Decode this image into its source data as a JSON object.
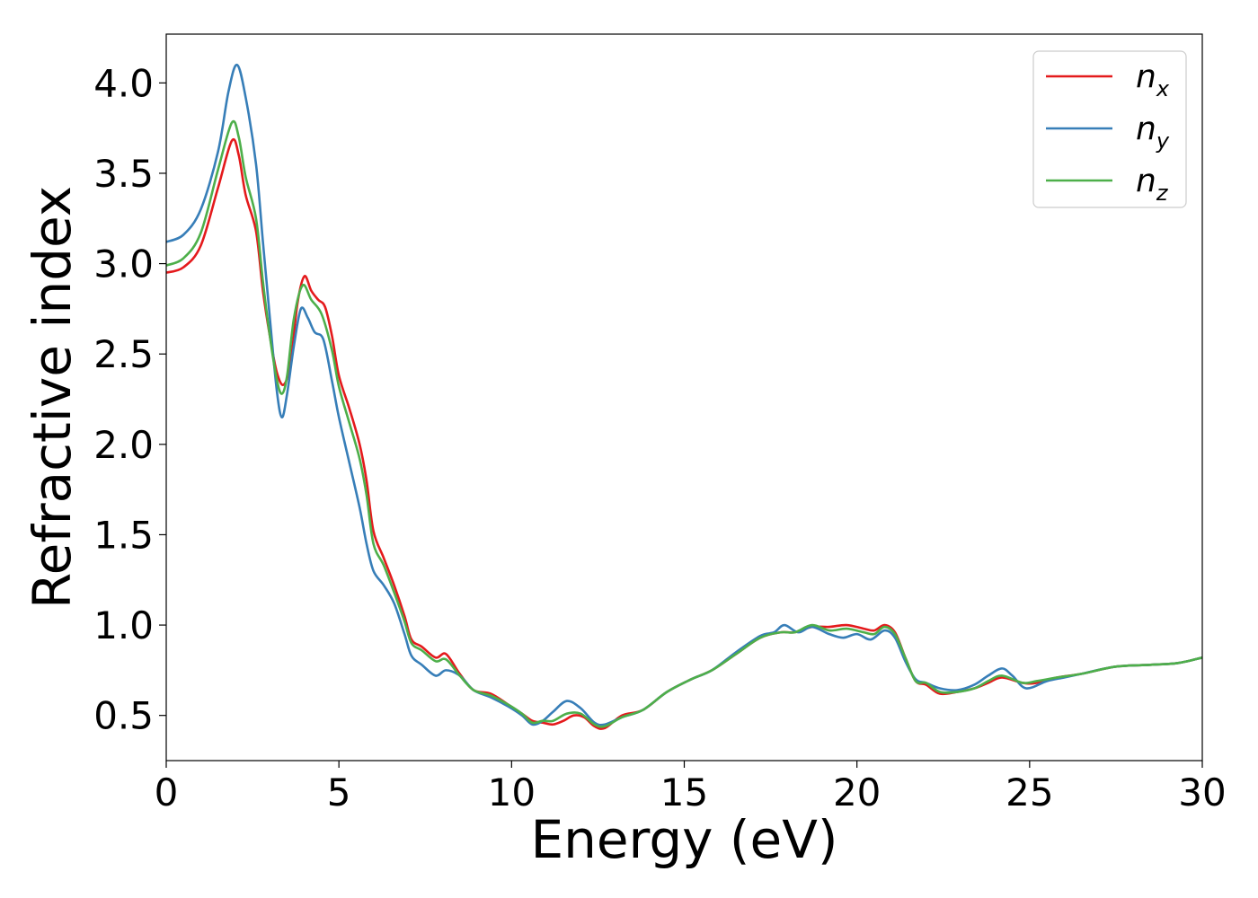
{
  "chart_data": {
    "type": "line",
    "title": "",
    "xlabel": "Energy (eV)",
    "ylabel": "Refractive index",
    "xlim": [
      0,
      30
    ],
    "ylim": [
      0.25,
      4.27
    ],
    "xticks": [
      0,
      5,
      10,
      15,
      20,
      25,
      30
    ],
    "xtick_labels": [
      "0",
      "5",
      "10",
      "15",
      "20",
      "25",
      "30"
    ],
    "yticks": [
      0.5,
      1.0,
      1.5,
      2.0,
      2.5,
      3.0,
      3.5,
      4.0
    ],
    "ytick_labels": [
      "0.5",
      "1.0",
      "1.5",
      "2.0",
      "2.5",
      "3.0",
      "3.5",
      "4.0"
    ],
    "grid": false,
    "legend_position": "top-right",
    "series": [
      {
        "name": "n_x",
        "label_base": "n",
        "label_sub": "x",
        "color": "#e41a1c",
        "points": [
          [
            0,
            2.95
          ],
          [
            0.5,
            2.98
          ],
          [
            1.0,
            3.1
          ],
          [
            1.5,
            3.42
          ],
          [
            1.9,
            3.68
          ],
          [
            2.1,
            3.6
          ],
          [
            2.3,
            3.38
          ],
          [
            2.6,
            3.18
          ],
          [
            2.8,
            2.85
          ],
          [
            3.0,
            2.6
          ],
          [
            3.2,
            2.4
          ],
          [
            3.4,
            2.33
          ],
          [
            3.6,
            2.45
          ],
          [
            3.8,
            2.78
          ],
          [
            4.0,
            2.93
          ],
          [
            4.2,
            2.85
          ],
          [
            4.4,
            2.8
          ],
          [
            4.6,
            2.76
          ],
          [
            4.8,
            2.6
          ],
          [
            5.0,
            2.38
          ],
          [
            5.3,
            2.2
          ],
          [
            5.6,
            2.0
          ],
          [
            5.8,
            1.8
          ],
          [
            6.0,
            1.52
          ],
          [
            6.3,
            1.37
          ],
          [
            6.6,
            1.22
          ],
          [
            6.9,
            1.05
          ],
          [
            7.1,
            0.92
          ],
          [
            7.4,
            0.88
          ],
          [
            7.8,
            0.82
          ],
          [
            8.1,
            0.84
          ],
          [
            8.5,
            0.73
          ],
          [
            8.9,
            0.64
          ],
          [
            9.4,
            0.62
          ],
          [
            9.9,
            0.56
          ],
          [
            10.3,
            0.51
          ],
          [
            10.6,
            0.47
          ],
          [
            10.9,
            0.46
          ],
          [
            11.2,
            0.45
          ],
          [
            11.5,
            0.47
          ],
          [
            11.8,
            0.5
          ],
          [
            12.1,
            0.49
          ],
          [
            12.4,
            0.44
          ],
          [
            12.7,
            0.43
          ],
          [
            13.2,
            0.5
          ],
          [
            13.8,
            0.53
          ],
          [
            14.5,
            0.63
          ],
          [
            15.2,
            0.7
          ],
          [
            15.8,
            0.75
          ],
          [
            16.5,
            0.84
          ],
          [
            17.2,
            0.93
          ],
          [
            17.8,
            0.96
          ],
          [
            18.2,
            0.96
          ],
          [
            18.7,
            0.99
          ],
          [
            19.2,
            0.99
          ],
          [
            19.7,
            1.0
          ],
          [
            20.2,
            0.98
          ],
          [
            20.5,
            0.97
          ],
          [
            20.8,
            1.0
          ],
          [
            21.1,
            0.96
          ],
          [
            21.4,
            0.82
          ],
          [
            21.7,
            0.69
          ],
          [
            22.0,
            0.67
          ],
          [
            22.4,
            0.62
          ],
          [
            22.9,
            0.63
          ],
          [
            23.4,
            0.65
          ],
          [
            23.8,
            0.68
          ],
          [
            24.2,
            0.71
          ],
          [
            24.8,
            0.68
          ],
          [
            25.2,
            0.68
          ],
          [
            25.8,
            0.71
          ],
          [
            26.5,
            0.73
          ],
          [
            27.5,
            0.77
          ],
          [
            28.5,
            0.78
          ],
          [
            29.3,
            0.79
          ],
          [
            30.0,
            0.82
          ]
        ]
      },
      {
        "name": "n_y",
        "label_base": "n",
        "label_sub": "y",
        "color": "#377eb8",
        "points": [
          [
            0,
            3.12
          ],
          [
            0.5,
            3.16
          ],
          [
            1.0,
            3.3
          ],
          [
            1.5,
            3.62
          ],
          [
            1.8,
            3.95
          ],
          [
            2.05,
            4.1
          ],
          [
            2.3,
            3.92
          ],
          [
            2.6,
            3.55
          ],
          [
            2.8,
            3.12
          ],
          [
            3.0,
            2.7
          ],
          [
            3.2,
            2.3
          ],
          [
            3.35,
            2.15
          ],
          [
            3.5,
            2.28
          ],
          [
            3.7,
            2.55
          ],
          [
            3.9,
            2.75
          ],
          [
            4.1,
            2.7
          ],
          [
            4.3,
            2.62
          ],
          [
            4.55,
            2.58
          ],
          [
            4.8,
            2.35
          ],
          [
            5.0,
            2.15
          ],
          [
            5.3,
            1.9
          ],
          [
            5.6,
            1.65
          ],
          [
            5.8,
            1.45
          ],
          [
            6.0,
            1.3
          ],
          [
            6.3,
            1.22
          ],
          [
            6.6,
            1.12
          ],
          [
            6.9,
            0.95
          ],
          [
            7.1,
            0.83
          ],
          [
            7.4,
            0.78
          ],
          [
            7.8,
            0.72
          ],
          [
            8.1,
            0.75
          ],
          [
            8.5,
            0.72
          ],
          [
            8.9,
            0.64
          ],
          [
            9.4,
            0.6
          ],
          [
            9.9,
            0.55
          ],
          [
            10.3,
            0.5
          ],
          [
            10.6,
            0.45
          ],
          [
            10.9,
            0.47
          ],
          [
            11.2,
            0.52
          ],
          [
            11.6,
            0.58
          ],
          [
            12.0,
            0.54
          ],
          [
            12.4,
            0.46
          ],
          [
            12.7,
            0.45
          ],
          [
            13.2,
            0.49
          ],
          [
            13.8,
            0.53
          ],
          [
            14.5,
            0.63
          ],
          [
            15.2,
            0.7
          ],
          [
            15.8,
            0.75
          ],
          [
            16.5,
            0.85
          ],
          [
            17.2,
            0.94
          ],
          [
            17.6,
            0.96
          ],
          [
            17.9,
            1.0
          ],
          [
            18.3,
            0.96
          ],
          [
            18.7,
            0.99
          ],
          [
            19.2,
            0.95
          ],
          [
            19.6,
            0.93
          ],
          [
            20.0,
            0.95
          ],
          [
            20.4,
            0.92
          ],
          [
            20.8,
            0.97
          ],
          [
            21.1,
            0.93
          ],
          [
            21.4,
            0.8
          ],
          [
            21.7,
            0.7
          ],
          [
            22.0,
            0.68
          ],
          [
            22.4,
            0.65
          ],
          [
            22.9,
            0.64
          ],
          [
            23.4,
            0.67
          ],
          [
            23.8,
            0.72
          ],
          [
            24.2,
            0.76
          ],
          [
            24.5,
            0.72
          ],
          [
            24.9,
            0.65
          ],
          [
            25.5,
            0.69
          ],
          [
            26.0,
            0.71
          ],
          [
            26.5,
            0.73
          ],
          [
            27.5,
            0.77
          ],
          [
            28.5,
            0.78
          ],
          [
            29.3,
            0.79
          ],
          [
            30.0,
            0.82
          ]
        ]
      },
      {
        "name": "n_z",
        "label_base": "n",
        "label_sub": "z",
        "color": "#4daf4a",
        "points": [
          [
            0,
            2.99
          ],
          [
            0.5,
            3.03
          ],
          [
            1.0,
            3.17
          ],
          [
            1.5,
            3.52
          ],
          [
            1.9,
            3.78
          ],
          [
            2.1,
            3.7
          ],
          [
            2.3,
            3.48
          ],
          [
            2.6,
            3.25
          ],
          [
            2.8,
            2.9
          ],
          [
            3.0,
            2.6
          ],
          [
            3.2,
            2.36
          ],
          [
            3.35,
            2.28
          ],
          [
            3.5,
            2.38
          ],
          [
            3.7,
            2.7
          ],
          [
            3.95,
            2.88
          ],
          [
            4.2,
            2.8
          ],
          [
            4.5,
            2.72
          ],
          [
            4.8,
            2.52
          ],
          [
            5.0,
            2.32
          ],
          [
            5.3,
            2.12
          ],
          [
            5.6,
            1.92
          ],
          [
            5.8,
            1.72
          ],
          [
            6.0,
            1.45
          ],
          [
            6.3,
            1.33
          ],
          [
            6.6,
            1.18
          ],
          [
            6.9,
            1.02
          ],
          [
            7.1,
            0.9
          ],
          [
            7.4,
            0.86
          ],
          [
            7.8,
            0.8
          ],
          [
            8.1,
            0.81
          ],
          [
            8.5,
            0.72
          ],
          [
            8.9,
            0.64
          ],
          [
            9.4,
            0.61
          ],
          [
            9.9,
            0.56
          ],
          [
            10.3,
            0.51
          ],
          [
            10.6,
            0.46
          ],
          [
            10.9,
            0.47
          ],
          [
            11.2,
            0.47
          ],
          [
            11.6,
            0.51
          ],
          [
            12.0,
            0.51
          ],
          [
            12.4,
            0.45
          ],
          [
            12.7,
            0.44
          ],
          [
            13.2,
            0.49
          ],
          [
            13.8,
            0.53
          ],
          [
            14.5,
            0.63
          ],
          [
            15.2,
            0.7
          ],
          [
            15.8,
            0.75
          ],
          [
            16.5,
            0.84
          ],
          [
            17.2,
            0.93
          ],
          [
            17.8,
            0.96
          ],
          [
            18.2,
            0.96
          ],
          [
            18.7,
            1.0
          ],
          [
            19.2,
            0.97
          ],
          [
            19.7,
            0.98
          ],
          [
            20.2,
            0.96
          ],
          [
            20.5,
            0.95
          ],
          [
            20.8,
            0.99
          ],
          [
            21.1,
            0.95
          ],
          [
            21.4,
            0.82
          ],
          [
            21.7,
            0.69
          ],
          [
            22.0,
            0.68
          ],
          [
            22.4,
            0.63
          ],
          [
            22.9,
            0.63
          ],
          [
            23.4,
            0.65
          ],
          [
            23.8,
            0.69
          ],
          [
            24.2,
            0.72
          ],
          [
            24.8,
            0.68
          ],
          [
            25.2,
            0.69
          ],
          [
            25.8,
            0.71
          ],
          [
            26.5,
            0.73
          ],
          [
            27.5,
            0.77
          ],
          [
            28.5,
            0.78
          ],
          [
            29.3,
            0.79
          ],
          [
            30.0,
            0.82
          ]
        ]
      }
    ]
  }
}
